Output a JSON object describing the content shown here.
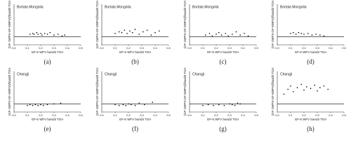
{
  "chart_data": [
    {
      "type": "scatter",
      "title": "Bortala Mongolia",
      "xlabel": "GF-6 WFV band3 TOA",
      "ylabel": "(GF-1WFV-GF-6WFV)/band3 TOA",
      "caption": "(a)",
      "color": "#000000",
      "hline": 0,
      "xlim": [
        0,
        0.5
      ],
      "xticks": [
        {
          "value": 0,
          "label": "0.0"
        },
        0.1,
        0.2,
        0.3,
        0.4,
        0.5
      ],
      "ylim": [
        -0.1,
        0.4
      ],
      "x": [
        0.12,
        0.14,
        0.15,
        0.17,
        0.18,
        0.2,
        0.21,
        0.23,
        0.25,
        0.27,
        0.3,
        0.33,
        0.36,
        0.38
      ],
      "values": [
        0.03,
        0.04,
        0.03,
        0.05,
        0.03,
        0.04,
        0.02,
        0.04,
        0.03,
        0.05,
        0.02,
        0.03,
        0.01,
        0.02
      ]
    },
    {
      "type": "scatter",
      "title": "Bortala Mongolia",
      "xlabel": "GF-6 WFV band3 TOA",
      "ylabel": "(GF-1WFV-GF-6WFV)/band3 TOA",
      "caption": "(b)",
      "color": "#000000",
      "hline": 0,
      "xlim": [
        0,
        0.5
      ],
      "xticks": [
        {
          "value": 0,
          "label": "0.0"
        },
        0.1,
        0.2,
        0.3,
        0.4,
        0.5
      ],
      "ylim": [
        -0.1,
        0.4
      ],
      "x": [
        0.1,
        0.13,
        0.15,
        0.17,
        0.19,
        0.21,
        0.23,
        0.25,
        0.28,
        0.31,
        0.34,
        0.37,
        0.4,
        0.43
      ],
      "values": [
        0.04,
        0.06,
        0.05,
        0.08,
        0.04,
        0.07,
        0.05,
        0.09,
        0.03,
        0.06,
        0.08,
        0.02,
        0.05,
        0.07
      ]
    },
    {
      "type": "scatter",
      "title": "Bortala Mongolia",
      "xlabel": "GF-6 WFV band3 TOA",
      "ylabel": "(GF-1WFV-GF-6WFV)/band3 TOA",
      "caption": "(c)",
      "color": "#000000",
      "hline": 0,
      "xlim": [
        0,
        0.5
      ],
      "xticks": [
        {
          "value": 0,
          "label": "0.0"
        },
        0.1,
        0.2,
        0.3,
        0.4,
        0.5
      ],
      "ylim": [
        -0.1,
        0.4
      ],
      "x": [
        0.12,
        0.15,
        0.17,
        0.2,
        0.22,
        0.24,
        0.27,
        0.29,
        0.32,
        0.35,
        0.38,
        0.41,
        0.44
      ],
      "values": [
        0.02,
        0.04,
        0.01,
        0.03,
        0.05,
        0.02,
        0.04,
        0.01,
        0.03,
        0.06,
        0.02,
        0.04,
        0.01
      ]
    },
    {
      "type": "scatter",
      "title": "Bortala Mongolia",
      "xlabel": "GF-6 WFV band3 TOA",
      "ylabel": "(GF-1WFV-GF-6WFV)/band3 TOA",
      "caption": "(d)",
      "color": "#000000",
      "hline": 0,
      "xlim": [
        0,
        0.5
      ],
      "xticks": [
        {
          "value": 0,
          "label": "0.0"
        },
        0.1,
        0.2,
        0.3,
        0.4,
        0.5
      ],
      "ylim": [
        -0.1,
        0.4
      ],
      "x": [
        0.1,
        0.12,
        0.14,
        0.16,
        0.18,
        0.2,
        0.23,
        0.26,
        0.29,
        0.32,
        0.35
      ],
      "values": [
        0.04,
        0.05,
        0.03,
        0.05,
        0.04,
        0.03,
        0.04,
        0.02,
        0.03,
        0.02,
        0.01
      ]
    },
    {
      "type": "scatter",
      "title": "Changji",
      "xlabel": "GF-6 WFV band3 TOA",
      "ylabel": "(GF-1WFV-GF-6WFV)/band3 TOA",
      "caption": "(e)",
      "color": "#000000",
      "hline": 0,
      "xlim": [
        0,
        0.5
      ],
      "xticks": [
        {
          "value": 0,
          "label": "0.0"
        },
        0.1,
        0.2,
        0.3,
        0.4,
        0.5
      ],
      "ylim": [
        -0.1,
        0.4
      ],
      "x": [
        0.1,
        0.12,
        0.14,
        0.16,
        0.18,
        0.2,
        0.22,
        0.25,
        0.3,
        0.35
      ],
      "values": [
        -0.02,
        -0.01,
        -0.02,
        -0.01,
        -0.02,
        -0.01,
        -0.02,
        -0.01,
        0.0,
        0.01
      ]
    },
    {
      "type": "scatter",
      "title": "Changji",
      "xlabel": "GF-6 WFV band3 TOA",
      "ylabel": "(GF-1WFV-GF-6WFV)/band3 TOA",
      "caption": "(f)",
      "color": "#000000",
      "hline": 0,
      "xlim": [
        0,
        0.5
      ],
      "xticks": [
        {
          "value": 0,
          "label": "0.0"
        },
        0.1,
        0.2,
        0.3,
        0.4,
        0.5
      ],
      "ylim": [
        -0.1,
        0.4
      ],
      "x": [
        0.1,
        0.13,
        0.16,
        0.18,
        0.2,
        0.22,
        0.25,
        0.28,
        0.32,
        0.38
      ],
      "values": [
        -0.01,
        -0.02,
        -0.01,
        -0.02,
        0.0,
        -0.01,
        -0.02,
        0.01,
        -0.01,
        0.02
      ]
    },
    {
      "type": "scatter",
      "title": "Changji",
      "xlabel": "GF-6 WFV band3 TOA",
      "ylabel": "(GF-1WFV-GF-6WFV)/band3 TOA",
      "caption": "(g)",
      "color": "#000000",
      "hline": 0,
      "xlim": [
        0,
        0.5
      ],
      "xticks": [
        {
          "value": 0,
          "label": "0.0"
        },
        0.1,
        0.2,
        0.3,
        0.4,
        0.5
      ],
      "ylim": [
        -0.1,
        0.4
      ],
      "x": [
        0.1,
        0.14,
        0.18,
        0.22,
        0.26,
        0.3,
        0.32,
        0.34,
        0.36,
        0.38
      ],
      "values": [
        -0.02,
        -0.01,
        -0.02,
        -0.01,
        -0.02,
        0.0,
        -0.01,
        -0.02,
        0.01,
        0.0
      ]
    },
    {
      "type": "scatter",
      "title": "Changji",
      "xlabel": "GF-6 WFV band3 TOA",
      "ylabel": "(GF-1WFV-GF-6WFV)/band3 TOA",
      "caption": "(h)",
      "color": "#000000",
      "hline": 0,
      "xlim": [
        0,
        0.5
      ],
      "xticks": [
        {
          "value": 0,
          "label": "0.0"
        },
        0.1,
        0.2,
        0.3,
        0.4,
        0.5
      ],
      "ylim": [
        -0.1,
        0.4
      ],
      "x": [
        0.05,
        0.08,
        0.1,
        0.12,
        0.15,
        0.18,
        0.2,
        0.22,
        0.25,
        0.28,
        0.3,
        0.32,
        0.35,
        0.38
      ],
      "values": [
        0.12,
        0.18,
        0.22,
        0.15,
        0.2,
        0.24,
        0.17,
        0.21,
        0.19,
        0.23,
        0.16,
        0.2,
        0.22,
        0.18
      ]
    }
  ]
}
